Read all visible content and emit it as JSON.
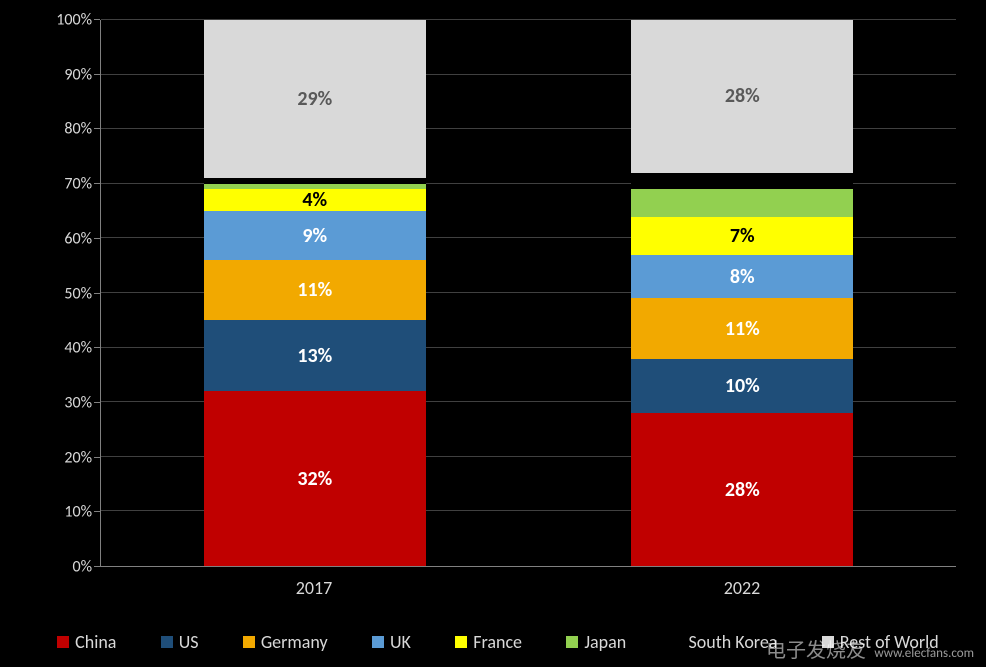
{
  "chart": {
    "type": "stacked-bar-100",
    "background_color": "#000000",
    "axis_text_color": "#D9D9D9",
    "grid_color": "#404040",
    "axis_line_color": "#808080",
    "font_family": "Calibri, Arial, sans-serif",
    "tick_fontsize": 16,
    "xlabel_fontsize": 18,
    "legend_fontsize": 18,
    "datalabel_fontsize": 20,
    "ylim": [
      0,
      100
    ],
    "ytick_step": 10,
    "bar_width_pct": 26,
    "categories": [
      "2017",
      "2022"
    ],
    "series": [
      {
        "name": "China",
        "color": "#C00000",
        "label_color": "#FFFFFF",
        "values": [
          32,
          28
        ],
        "show_label": [
          true,
          true
        ]
      },
      {
        "name": "US",
        "color": "#1F4E79",
        "label_color": "#FFFFFF",
        "values": [
          13,
          10
        ],
        "show_label": [
          true,
          true
        ]
      },
      {
        "name": "Germany",
        "color": "#F2A900",
        "label_color": "#FFFFFF",
        "values": [
          11,
          11
        ],
        "show_label": [
          true,
          true
        ]
      },
      {
        "name": "UK",
        "color": "#5B9BD5",
        "label_color": "#FFFFFF",
        "values": [
          9,
          8
        ],
        "show_label": [
          true,
          true
        ]
      },
      {
        "name": "France",
        "color": "#FFFF00",
        "label_color": "#000000",
        "values": [
          4,
          7
        ],
        "show_label": [
          true,
          true
        ]
      },
      {
        "name": "Japan",
        "color": "#92D050",
        "label_color": "#000000",
        "values": [
          1,
          5
        ],
        "show_label": [
          false,
          false
        ]
      },
      {
        "name": "South Korea",
        "color": "#000000",
        "label_color": "#FFFFFF",
        "values": [
          1,
          3
        ],
        "show_label": [
          false,
          false
        ]
      },
      {
        "name": "Rest of World",
        "color": "#D9D9D9",
        "label_color": "#595959",
        "values": [
          29,
          28
        ],
        "show_label": [
          true,
          true
        ]
      }
    ],
    "y_ticks": [
      {
        "pos": 0,
        "label": "0%"
      },
      {
        "pos": 10,
        "label": "10%"
      },
      {
        "pos": 20,
        "label": "20%"
      },
      {
        "pos": 30,
        "label": "30%"
      },
      {
        "pos": 40,
        "label": "40%"
      },
      {
        "pos": 50,
        "label": "50%"
      },
      {
        "pos": 60,
        "label": "60%"
      },
      {
        "pos": 70,
        "label": "70%"
      },
      {
        "pos": 80,
        "label": "80%"
      },
      {
        "pos": 90,
        "label": "90%"
      },
      {
        "pos": 100,
        "label": "100%"
      }
    ]
  },
  "watermark": {
    "text": "www.elecfans.com",
    "brand": "电子发烧友"
  }
}
